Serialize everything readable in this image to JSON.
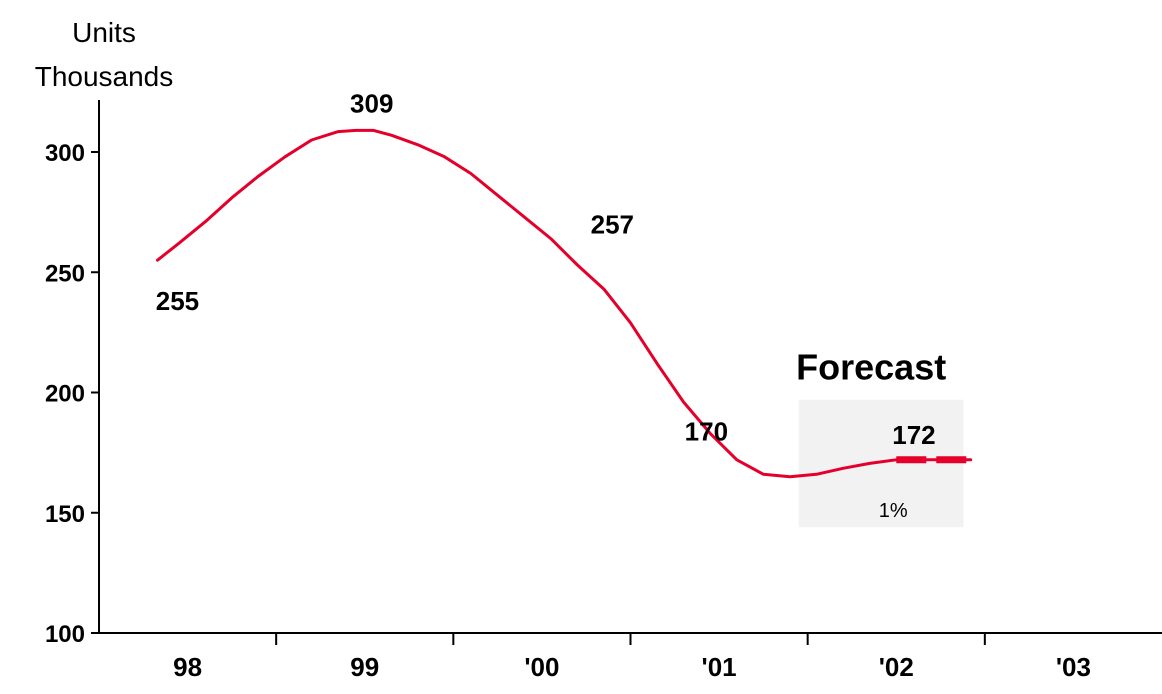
{
  "chart_data": {
    "type": "line",
    "ylabel": [
      "Units",
      "Thousands"
    ],
    "ylim": [
      100,
      320
    ],
    "yticks": [
      100,
      150,
      200,
      250,
      300
    ],
    "xlim": [
      1997.5,
      2003.5
    ],
    "categories": [
      "98",
      "99",
      "'00",
      "'01",
      "'02",
      "'03"
    ],
    "category_years": [
      1998,
      1999,
      2000,
      2001,
      2002,
      2003
    ],
    "series": [
      {
        "color": "#e4002b",
        "points": [
          [
            1997.83,
            255
          ],
          [
            1997.95,
            262
          ],
          [
            1998.1,
            271
          ],
          [
            1998.25,
            281
          ],
          [
            1998.4,
            290
          ],
          [
            1998.55,
            298
          ],
          [
            1998.7,
            305
          ],
          [
            1998.85,
            308.5
          ],
          [
            1998.95,
            309
          ],
          [
            1999.05,
            309
          ],
          [
            1999.15,
            307
          ],
          [
            1999.3,
            303
          ],
          [
            1999.45,
            298
          ],
          [
            1999.6,
            291
          ],
          [
            1999.75,
            282
          ],
          [
            1999.9,
            273
          ],
          [
            2000.05,
            264
          ],
          [
            2000.2,
            253
          ],
          [
            2000.35,
            243
          ],
          [
            2000.5,
            229
          ],
          [
            2000.65,
            212
          ],
          [
            2000.8,
            196
          ],
          [
            2000.95,
            183
          ],
          [
            2001.1,
            172
          ],
          [
            2001.25,
            166
          ],
          [
            2001.4,
            165
          ],
          [
            2001.55,
            166
          ],
          [
            2001.7,
            168.5
          ],
          [
            2001.85,
            170.5
          ],
          [
            2002.0,
            172
          ],
          [
            2002.15,
            172
          ],
          [
            2002.3,
            172
          ],
          [
            2002.42,
            172
          ]
        ],
        "forecast_from": 2001.9
      }
    ],
    "data_labels": [
      {
        "text": "255",
        "x": 1997.83,
        "y": 255,
        "placement": "below"
      },
      {
        "text": "309",
        "x": 1999.0,
        "y": 309,
        "placement": "above"
      },
      {
        "text": "257",
        "x": 2000.2,
        "y": 257,
        "placement": "above-right"
      },
      {
        "text": "170",
        "x": 2000.9,
        "y": 170,
        "placement": "above"
      },
      {
        "text": "172",
        "x": 2002.1,
        "y": 172,
        "placement": "above"
      }
    ],
    "forecast": {
      "label": "Forecast",
      "growth": "1%",
      "x_range": [
        2001.45,
        2002.38
      ],
      "y_range": [
        144,
        197
      ],
      "color": "#f2f2f2"
    }
  }
}
